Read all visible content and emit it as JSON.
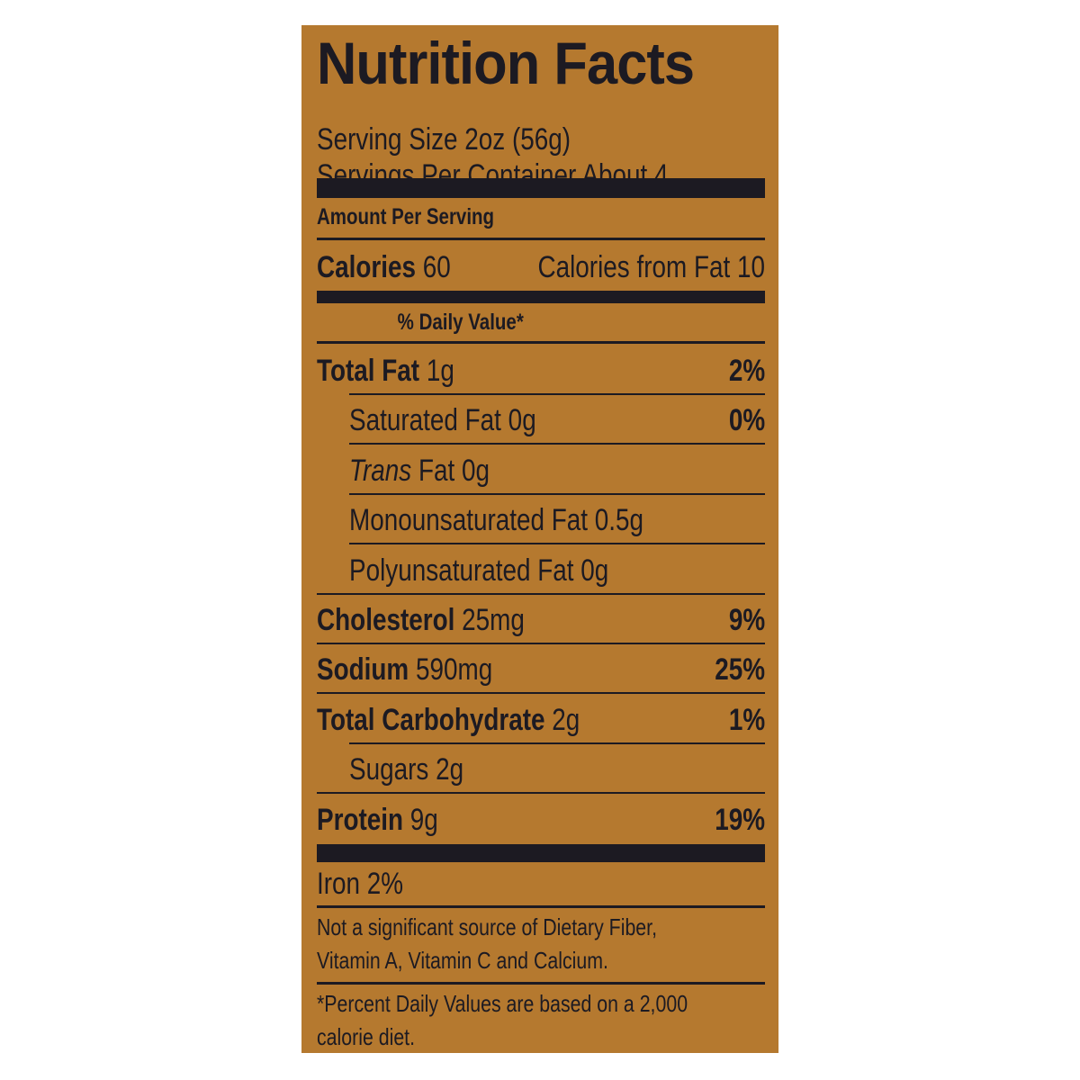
{
  "label": {
    "title": "Nutrition Facts",
    "serving_size": "Serving Size 2oz (56g)",
    "servings_per_container": "Servings Per Container About 4",
    "amount_per_serving": "Amount Per Serving",
    "calories_label": "Calories",
    "calories_value": "60",
    "calories_from_fat": "Calories from Fat 10",
    "daily_value_header": "% Daily Value*",
    "nutrients": [
      {
        "name": "Total Fat",
        "amount": "1g",
        "dv": "2%"
      },
      {
        "name": "Saturated Fat",
        "amount": "0g",
        "dv": "0%"
      },
      {
        "name": "Trans",
        "amount": "Fat 0g",
        "dv": ""
      },
      {
        "name": "Monounsaturated Fat",
        "amount": "0.5g",
        "dv": ""
      },
      {
        "name": "Polyunsaturated Fat",
        "amount": "0g",
        "dv": ""
      },
      {
        "name": "Cholesterol",
        "amount": "25mg",
        "dv": "9%"
      },
      {
        "name": "Sodium",
        "amount": "590mg",
        "dv": "25%"
      },
      {
        "name": "Total Carbohydrate",
        "amount": "2g",
        "dv": "1%"
      },
      {
        "name": "Sugars",
        "amount": "2g",
        "dv": ""
      },
      {
        "name": "Protein",
        "amount": "9g",
        "dv": "19%"
      }
    ],
    "iron": "Iron 2%",
    "not_significant_line1": "Not a significant source of Dietary Fiber,",
    "not_significant_line2": "Vitamin A, Vitamin C and Calcium.",
    "footnote_line1": "*Percent Daily Values are based on a 2,000",
    "footnote_line2": "calorie diet."
  },
  "colors": {
    "background": "#b5792f",
    "ink": "#1c1a22"
  }
}
